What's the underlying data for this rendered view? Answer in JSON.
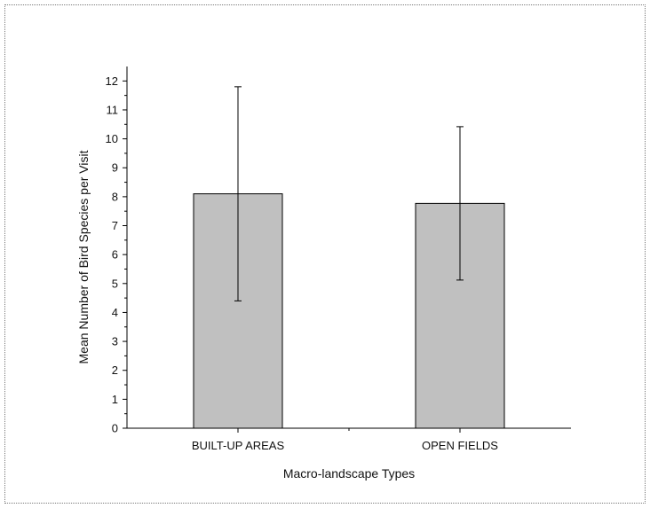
{
  "chart_data": {
    "type": "bar",
    "categories": [
      "BUILT-UP AREAS",
      "OPEN FIELDS"
    ],
    "values": [
      8.1,
      7.77
    ],
    "error": [
      3.7,
      2.65
    ],
    "xlabel": "Macro-landscape Types",
    "ylabel": "Mean Number of Bird Species per Visit",
    "ylim": [
      0,
      12.5
    ],
    "yticks": [
      0,
      1,
      2,
      3,
      4,
      5,
      6,
      7,
      8,
      9,
      10,
      11,
      12
    ],
    "bar_color": "#c0c0c0",
    "grid": false,
    "legend": false
  }
}
